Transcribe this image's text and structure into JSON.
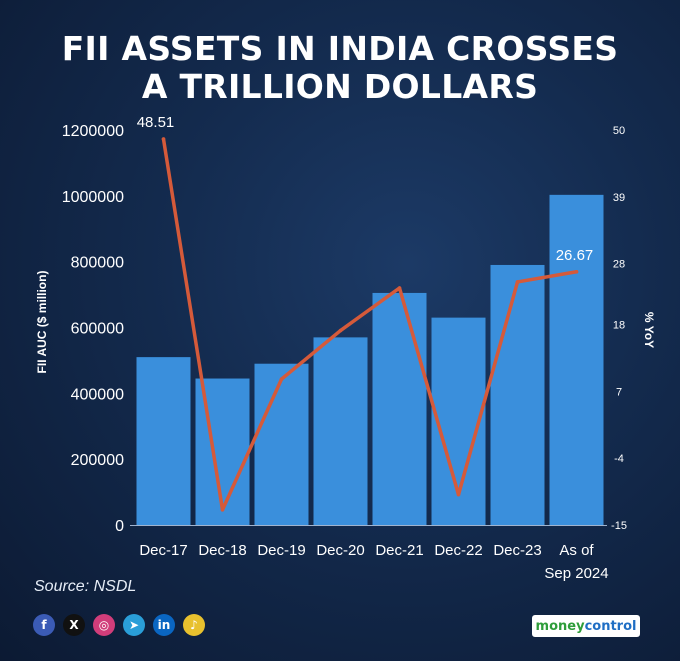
{
  "headline": {
    "line1": "FII ASSETS IN INDIA CROSSES",
    "line2": "A TRILLION DOLLARS"
  },
  "chart_data": {
    "type": "bar",
    "categories": [
      [
        "Dec-17"
      ],
      [
        "Dec-18"
      ],
      [
        "Dec-19"
      ],
      [
        "Dec-20"
      ],
      [
        "Dec-21"
      ],
      [
        "Dec-22"
      ],
      [
        "Dec-23"
      ],
      [
        "As of",
        "Sep 2024"
      ]
    ],
    "series": [
      {
        "name": "FII AUC",
        "type": "bar",
        "axis": "left",
        "color": "#3a8fdc",
        "values": [
          510000,
          445000,
          490000,
          570000,
          705000,
          630000,
          790000,
          1003000
        ]
      },
      {
        "name": "% YoY",
        "type": "line",
        "axis": "right",
        "color": "#d55a3a",
        "values": [
          48.51,
          -12.5,
          9,
          17,
          24,
          -10,
          25,
          26.67
        ]
      }
    ],
    "data_labels": [
      {
        "index": 0,
        "text": "48.51"
      },
      {
        "index": 7,
        "text": "26.67"
      }
    ],
    "ylabel": "FII AUC ($ million)",
    "y2label": "% YoY",
    "ylim": [
      0,
      1200000
    ],
    "y2lim": [
      -15,
      50
    ],
    "yticks": [
      "0",
      "200000",
      "400000",
      "600000",
      "800000",
      "1000000",
      "1200000"
    ],
    "y2ticks": [
      "-15",
      "-4",
      "7",
      "18",
      "28",
      "39",
      "50"
    ],
    "grid": false,
    "legend": "none"
  },
  "source": "Source: NSDL",
  "socials": [
    {
      "icon": "facebook-icon",
      "glyph": "f",
      "color": "#3b5bb5"
    },
    {
      "icon": "x-icon",
      "glyph": "X",
      "color": "#111111"
    },
    {
      "icon": "instagram-icon",
      "glyph": "◎",
      "color": "#d13d7a"
    },
    {
      "icon": "telegram-icon",
      "glyph": "➤",
      "color": "#2a9ed8"
    },
    {
      "icon": "linkedin-icon",
      "glyph": "in",
      "color": "#0a66c2"
    },
    {
      "icon": "koo-icon",
      "glyph": "♪",
      "color": "#e8c12e"
    }
  ],
  "brand": {
    "part1": "money",
    "part2": "control"
  }
}
